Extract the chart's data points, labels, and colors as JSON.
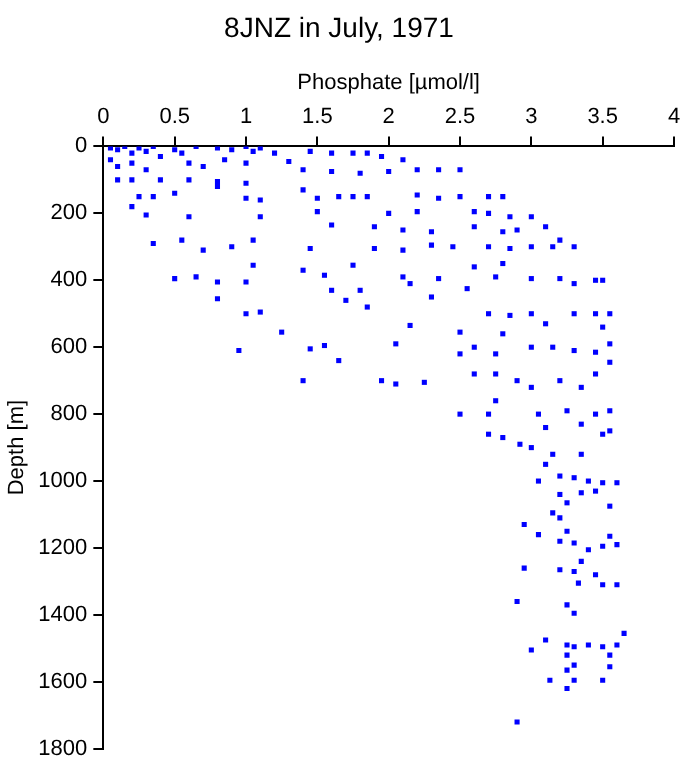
{
  "chart_data": {
    "type": "scatter",
    "title": "8JNZ in July, 1971",
    "xlabel": "Phosphate [µmol/l]",
    "ylabel": "Depth [m]",
    "xlim": [
      0,
      4
    ],
    "xticks": [
      0,
      0.5,
      1,
      1.5,
      2,
      2.5,
      3,
      3.5,
      4
    ],
    "ylim": [
      1800,
      0
    ],
    "yticks": [
      0,
      200,
      400,
      600,
      800,
      1000,
      1200,
      1400,
      1600,
      1800
    ],
    "grid": false,
    "legend": false,
    "marker": "square",
    "series": [
      {
        "color": "#0000ff",
        "x": [
          0.05,
          0.1,
          0.15,
          0.2,
          0.25,
          0.3,
          0.35,
          0.05,
          0.1,
          0.2,
          0.3,
          0.4,
          0.5,
          0.55,
          0.65,
          0.8,
          0.9,
          1.0,
          1.05,
          1.1,
          0.6,
          0.7,
          0.85,
          1.0,
          1.2,
          1.3,
          1.45,
          1.6,
          1.75,
          1.85,
          1.95,
          2.1,
          2.2,
          2.35,
          2.5,
          1.4,
          1.6,
          1.8,
          2.0,
          0.2,
          0.4,
          0.6,
          0.8,
          1.0,
          0.1,
          0.25,
          0.35,
          0.2,
          0.3,
          0.5,
          0.6,
          0.8,
          1.0,
          1.1,
          1.1,
          1.4,
          1.5,
          1.5,
          1.65,
          1.75,
          1.85,
          2.0,
          2.2,
          2.2,
          2.35,
          2.5,
          2.6,
          2.7,
          2.8,
          2.7,
          2.85,
          3.0,
          1.6,
          1.9,
          2.1,
          2.3,
          2.6,
          2.8,
          2.9,
          3.1,
          3.2,
          0.35,
          0.55,
          0.7,
          0.9,
          1.05,
          1.45,
          1.9,
          2.1,
          2.3,
          2.45,
          2.7,
          2.85,
          3.0,
          3.15,
          3.3,
          0.5,
          0.65,
          0.8,
          1.0,
          1.05,
          1.4,
          1.55,
          1.75,
          2.1,
          2.35,
          2.6,
          2.75,
          2.8,
          3.0,
          3.2,
          3.3,
          3.45,
          3.5,
          0.8,
          1.0,
          1.1,
          1.25,
          1.6,
          1.7,
          1.8,
          1.85,
          2.15,
          2.3,
          2.55,
          2.7,
          2.85,
          3.0,
          3.1,
          3.3,
          3.45,
          3.55,
          3.5,
          0.95,
          1.45,
          1.55,
          1.65,
          1.4,
          1.95,
          2.05,
          2.05,
          2.15,
          2.5,
          2.5,
          2.6,
          2.75,
          2.8,
          3.0,
          3.15,
          3.3,
          3.45,
          3.55,
          3.55,
          2.25,
          2.6,
          2.75,
          2.9,
          3.0,
          3.2,
          3.35,
          3.45,
          2.5,
          2.7,
          2.75,
          3.05,
          3.25,
          3.35,
          3.45,
          3.55,
          3.5,
          3.1,
          2.7,
          2.8,
          2.92,
          3.0,
          3.1,
          3.15,
          3.35,
          3.55,
          3.05,
          3.2,
          3.3,
          3.4,
          3.5,
          3.6,
          3.2,
          3.35,
          3.45,
          3.25,
          3.55,
          3.15,
          3.2,
          2.95,
          3.05,
          3.25,
          3.3,
          3.4,
          3.5,
          3.6,
          3.55,
          3.2,
          3.35,
          3.45,
          3.3,
          3.5,
          3.6,
          3.33,
          3.2,
          2.95,
          2.9,
          3.25,
          3.3,
          3.1,
          3.0,
          3.25,
          3.3,
          3.4,
          3.5,
          3.6,
          3.65,
          3.55,
          3.25,
          3.25,
          3.3,
          3.13,
          3.3,
          3.5,
          3.55,
          3.25,
          2.9
        ],
        "values": [
          5,
          10,
          0,
          20,
          5,
          15,
          0,
          40,
          60,
          50,
          70,
          30,
          10,
          20,
          0,
          5,
          10,
          0,
          15,
          5,
          50,
          60,
          40,
          50,
          20,
          45,
          15,
          20,
          20,
          20,
          30,
          40,
          70,
          70,
          70,
          70,
          75,
          80,
          75,
          100,
          100,
          100,
          105,
          110,
          100,
          150,
          150,
          180,
          205,
          140,
          210,
          120,
          155,
          160,
          210,
          130,
          155,
          195,
          150,
          150,
          150,
          200,
          145,
          195,
          155,
          150,
          195,
          150,
          150,
          200,
          210,
          210,
          235,
          240,
          250,
          255,
          240,
          255,
          250,
          240,
          280,
          290,
          280,
          310,
          300,
          280,
          305,
          305,
          310,
          295,
          300,
          300,
          305,
          300,
          300,
          300,
          395,
          390,
          405,
          405,
          355,
          370,
          385,
          355,
          390,
          395,
          360,
          390,
          350,
          395,
          395,
          410,
          400,
          400,
          455,
          500,
          495,
          555,
          430,
          460,
          430,
          480,
          410,
          450,
          425,
          500,
          505,
          500,
          530,
          500,
          500,
          500,
          540,
          610,
          605,
          595,
          640,
          700,
          700,
          710,
          590,
          535,
          555,
          620,
          600,
          620,
          560,
          600,
          600,
          610,
          615,
          590,
          645,
          705,
          680,
          680,
          700,
          720,
          700,
          720,
          680,
          800,
          800,
          760,
          800,
          790,
          830,
          800,
          790,
          860,
          840,
          860,
          870,
          890,
          900,
          950,
          920,
          920,
          850,
          1000,
          985,
          990,
          1000,
          1005,
          1005,
          1040,
          1035,
          1030,
          1065,
          1075,
          1095,
          1110,
          1130,
          1160,
          1150,
          1185,
          1205,
          1195,
          1190,
          1165,
          1180,
          1240,
          1280,
          1270,
          1310,
          1310,
          1305,
          1265,
          1260,
          1360,
          1370,
          1395,
          1475,
          1505,
          1490,
          1495,
          1490,
          1495,
          1490,
          1455,
          1520,
          1520,
          1565,
          1550,
          1595,
          1595,
          1595,
          1555,
          1620,
          1720
        ]
      }
    ]
  }
}
